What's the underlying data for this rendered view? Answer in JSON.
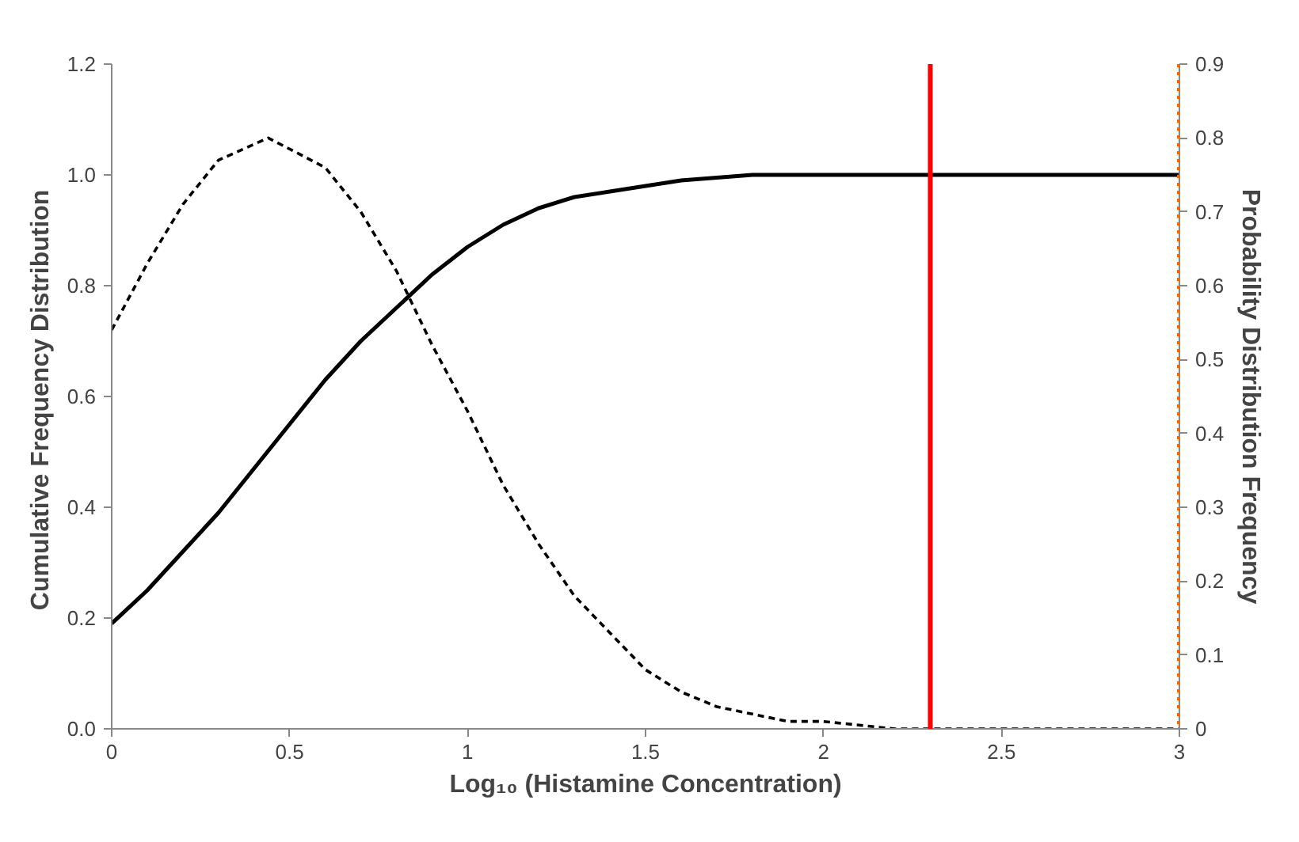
{
  "chart_data": {
    "type": "line",
    "xlabel": "Log₁₀ (Histamine Concentration)",
    "ylabel": "Cumulative Frequency  Distribution",
    "y2label": "Probability Distribution Frequency",
    "xlim": [
      0,
      3
    ],
    "xticks": [
      0,
      0.5,
      1,
      1.5,
      2,
      2.5,
      3
    ],
    "ylim": [
      0,
      1.2
    ],
    "yticks": [
      {
        "value": 0,
        "label": "0.0"
      },
      {
        "value": 0.2,
        "label": "0.2"
      },
      {
        "value": 0.4,
        "label": "0.4"
      },
      {
        "value": 0.6,
        "label": "0.6"
      },
      {
        "value": 0.8,
        "label": "0.8"
      },
      {
        "value": 1,
        "label": "1.0"
      },
      {
        "value": 1.2,
        "label": "1.2"
      }
    ],
    "y2lim": [
      0,
      0.9
    ],
    "y2ticks": [
      0,
      0.1,
      0.2,
      0.3,
      0.4,
      0.5,
      0.6,
      0.7,
      0.8,
      0.9
    ],
    "grid": false,
    "series": [
      {
        "color": "#000000",
        "line_style": "solid",
        "x": [
          0,
          0.1,
          0.2,
          0.3,
          0.4,
          0.5,
          0.6,
          0.7,
          0.8,
          0.9,
          1.0,
          1.1,
          1.2,
          1.3,
          1.4,
          1.5,
          1.6,
          1.8,
          2.0,
          2.5,
          3.0
        ],
        "values": [
          0.19,
          0.25,
          0.32,
          0.39,
          0.47,
          0.55,
          0.63,
          0.7,
          0.76,
          0.82,
          0.87,
          0.91,
          0.94,
          0.96,
          0.97,
          0.98,
          0.99,
          1.0,
          1.0,
          1.0,
          1.0
        ]
      },
      {
        "color": "#000000",
        "line_style": "dashed",
        "axis": "y2",
        "x": [
          0,
          0.1,
          0.2,
          0.3,
          0.44,
          0.6,
          0.7,
          0.8,
          0.9,
          1.0,
          1.1,
          1.2,
          1.3,
          1.4,
          1.5,
          1.6,
          1.7,
          1.8,
          1.9,
          2.0,
          2.2,
          2.5,
          3.0
        ],
        "values": [
          0.54,
          0.63,
          0.71,
          0.77,
          0.8,
          0.76,
          0.7,
          0.62,
          0.52,
          0.43,
          0.33,
          0.25,
          0.18,
          0.13,
          0.08,
          0.05,
          0.03,
          0.02,
          0.01,
          0.01,
          0,
          0,
          0
        ]
      }
    ],
    "ref_lines": [
      {
        "axis": "x",
        "value": 2.3,
        "color": "#ff0000",
        "line_style": "solid"
      },
      {
        "axis": "x",
        "value": 3,
        "color": "#ff6600",
        "line_style": "dotted"
      }
    ]
  }
}
